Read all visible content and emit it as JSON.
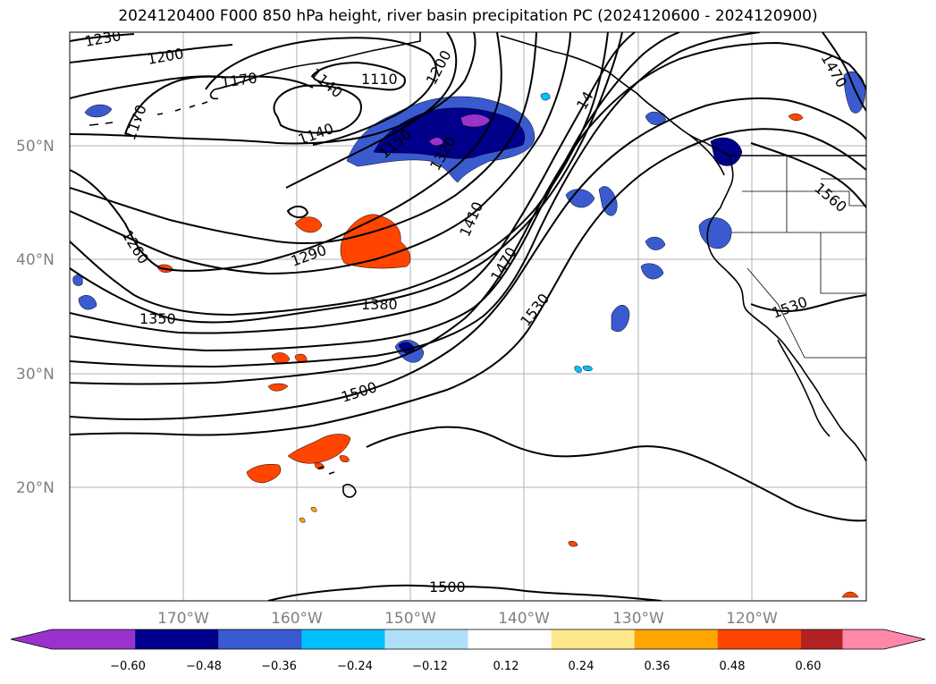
{
  "title": "2024120400 F000 850 hPa height, river basin precipitation PC (2024120600 - 2024120900)",
  "map": {
    "lat_labels": [
      "50°N",
      "40°N",
      "30°N",
      "20°N"
    ],
    "lon_labels": [
      "170°W",
      "160°W",
      "150°W",
      "140°W",
      "130°W",
      "120°W"
    ],
    "contour_labels": [
      "1230",
      "1200",
      "1170",
      "1170",
      "1140",
      "1110",
      "1200",
      "1140",
      "1260",
      "1290",
      "1350",
      "1380",
      "1410",
      "1470",
      "1530",
      "1500",
      "1470",
      "1560",
      "1530",
      "1500",
      "14",
      "1150",
      "1320"
    ]
  },
  "colorbar": {
    "ticks": [
      "−0.60",
      "−0.48",
      "−0.36",
      "−0.24",
      "−0.12",
      "0.12",
      "0.24",
      "0.36",
      "0.48",
      "0.60"
    ],
    "colors": [
      "#9933cc",
      "#00008b",
      "#3a5bd0",
      "#00bfff",
      "#b0e0f8",
      "#ffffff",
      "#fde98a",
      "#ffa500",
      "#ff4500",
      "#b22222",
      "#ff88aa"
    ]
  }
}
